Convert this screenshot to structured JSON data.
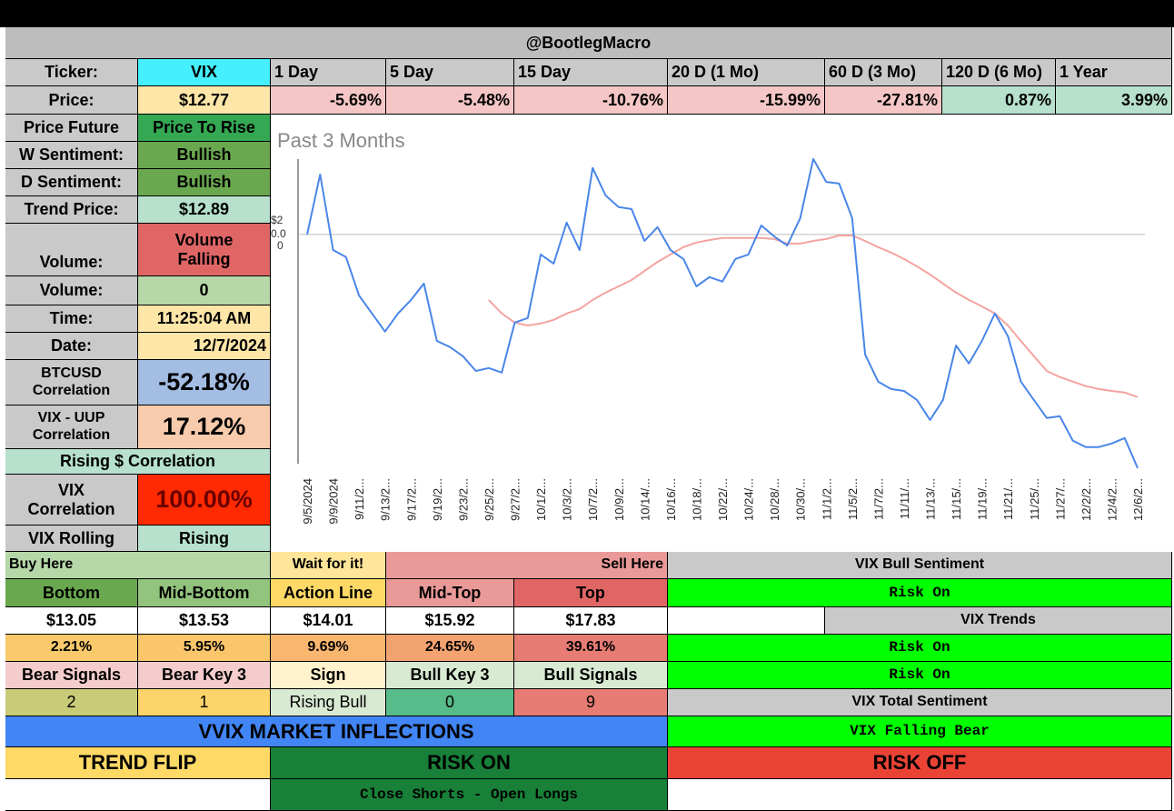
{
  "header": {
    "title": "@BootlegMacro"
  },
  "ticker": {
    "label": "Ticker:",
    "value": "VIX"
  },
  "periods": [
    "1 Day",
    "5 Day",
    "15 Day",
    "20 D (1 Mo)",
    "60 D (3 Mo)",
    "120 D (6 Mo)",
    "1 Year"
  ],
  "price": {
    "label": "Price:",
    "value": "$12.77",
    "changes": [
      "-5.69%",
      "-5.48%",
      "-10.76%",
      "-15.99%",
      "-27.81%",
      "0.87%",
      "3.99%"
    ]
  },
  "left_panel": [
    [
      "Price Future",
      "Price To Rise"
    ],
    [
      "W Sentiment:",
      "Bullish"
    ],
    [
      "D Sentiment:",
      "Bullish"
    ],
    [
      "Trend Price:",
      "$12.89"
    ],
    [
      "Volume:",
      "Volume Falling"
    ],
    [
      "Volume:",
      "0"
    ],
    [
      "Time:",
      "11:25:04 AM"
    ],
    [
      "Date:",
      "12/7/2024"
    ],
    [
      "BTCUSD Correlation",
      "-52.18%"
    ],
    [
      "VIX - UUP Correlation",
      "17.12%"
    ]
  ],
  "rising_correlation": "Rising $ Correlation",
  "left_panel_lower": [
    [
      "VIX Correlation",
      "100.00%"
    ],
    [
      "VIX Rolling",
      "Rising"
    ]
  ],
  "zones": {
    "buy": "Buy Here",
    "wait": "Wait for it!",
    "sell": "Sell Here"
  },
  "levels": {
    "names": [
      "Bottom",
      "Mid-Bottom",
      "Action Line",
      "Mid-Top",
      "Top"
    ],
    "prices": [
      "$13.05",
      "$13.53",
      "$14.01",
      "$15.92",
      "$17.83"
    ],
    "percents": [
      "2.21%",
      "5.95%",
      "9.69%",
      "24.65%",
      "39.61%"
    ]
  },
  "signals": {
    "names": [
      "Bear Signals",
      "Bear Key 3",
      "Sign",
      "Bull Key 3",
      "Bull Signals"
    ],
    "values": [
      "2",
      "1",
      "Rising Bull",
      "0",
      "9"
    ]
  },
  "inflections": {
    "title": "VVIX MARKET INFLECTIONS",
    "states": [
      "TREND FLIP",
      "RISK ON",
      "RISK OFF"
    ],
    "note": "Close Shorts - Open Longs"
  },
  "right_panel": {
    "bull_sentiment": "VIX Bull Sentiment",
    "bull_value": "Risk On",
    "trends": "VIX Trends",
    "trend_values": [
      "Risk On",
      "Risk On"
    ],
    "total_sentiment": "VIX Total Sentiment",
    "total_value": "VIX Falling Bear"
  },
  "chart_data": {
    "type": "line",
    "title": "Past 3 Months",
    "categories": [
      "9/5/2024",
      null,
      "9/9/2024",
      null,
      "9/11/2...",
      null,
      "9/13/2...",
      null,
      "9/17/2...",
      null,
      "9/19/2...",
      null,
      "9/23/2...",
      null,
      "9/25/2...",
      null,
      "9/27/2...",
      null,
      "10/1/2...",
      null,
      "10/3/2...",
      null,
      "10/7/2...",
      null,
      "10/9/2...",
      null,
      "10/14/...",
      null,
      "10/16/...",
      null,
      "10/18/...",
      null,
      "10/22/...",
      null,
      "10/24/...",
      null,
      "10/28/...",
      null,
      "10/30/...",
      null,
      "11/1/2...",
      null,
      "11/5/2...",
      null,
      "11/7/2...",
      null,
      "11/11/...",
      null,
      "11/13/...",
      null,
      "11/15/...",
      null,
      "11/19/...",
      null,
      "11/21/...",
      null,
      "11/25/...",
      null,
      "11/27/...",
      null,
      "12/2/2...",
      null,
      "12/4/2...",
      null,
      "12/6/2..."
    ],
    "series": [
      {
        "color": "#4a86e8",
        "values": [
          20.0,
          21.86,
          19.52,
          19.3,
          18.11,
          17.55,
          16.99,
          17.55,
          17.97,
          18.48,
          16.7,
          16.51,
          16.23,
          15.77,
          15.86,
          15.72,
          17.27,
          17.41,
          19.38,
          19.1,
          20.37,
          19.52,
          22.06,
          21.21,
          20.85,
          20.79,
          19.8,
          20.23,
          19.52,
          19.24,
          18.39,
          18.68,
          18.54,
          19.24,
          19.38,
          20.28,
          19.94,
          19.66,
          20.51,
          22.34,
          21.63,
          21.58,
          20.51,
          16.28,
          15.44,
          15.21,
          15.15,
          14.87,
          14.25,
          14.87,
          16.56,
          16.0,
          16.7,
          17.55,
          16.85,
          15.44,
          14.87,
          14.31,
          14.37,
          13.61,
          13.41,
          13.41,
          13.52,
          13.69,
          12.76
        ]
      },
      {
        "color": "#f4a4a0",
        "values": [
          null,
          null,
          null,
          null,
          null,
          null,
          null,
          null,
          null,
          null,
          null,
          null,
          null,
          null,
          17.97,
          17.55,
          17.27,
          17.18,
          17.24,
          17.35,
          17.55,
          17.69,
          17.97,
          18.2,
          18.39,
          18.59,
          18.87,
          19.15,
          19.38,
          19.61,
          19.75,
          19.83,
          19.89,
          19.89,
          19.89,
          19.89,
          19.86,
          19.72,
          19.72,
          19.8,
          19.86,
          19.97,
          19.97,
          19.8,
          19.61,
          19.44,
          19.24,
          19.01,
          18.76,
          18.48,
          18.2,
          17.97,
          17.77,
          17.55,
          17.18,
          16.7,
          16.23,
          15.77,
          15.58,
          15.44,
          15.3,
          15.21,
          15.15,
          15.1,
          14.96
        ]
      }
    ],
    "ylim": [
      12.5,
      23
    ],
    "yticks": [
      {
        "value": 20,
        "label": "$2"
      }
    ],
    "ytick_fragments": [
      "0.0",
      "0"
    ],
    "grid": true
  }
}
